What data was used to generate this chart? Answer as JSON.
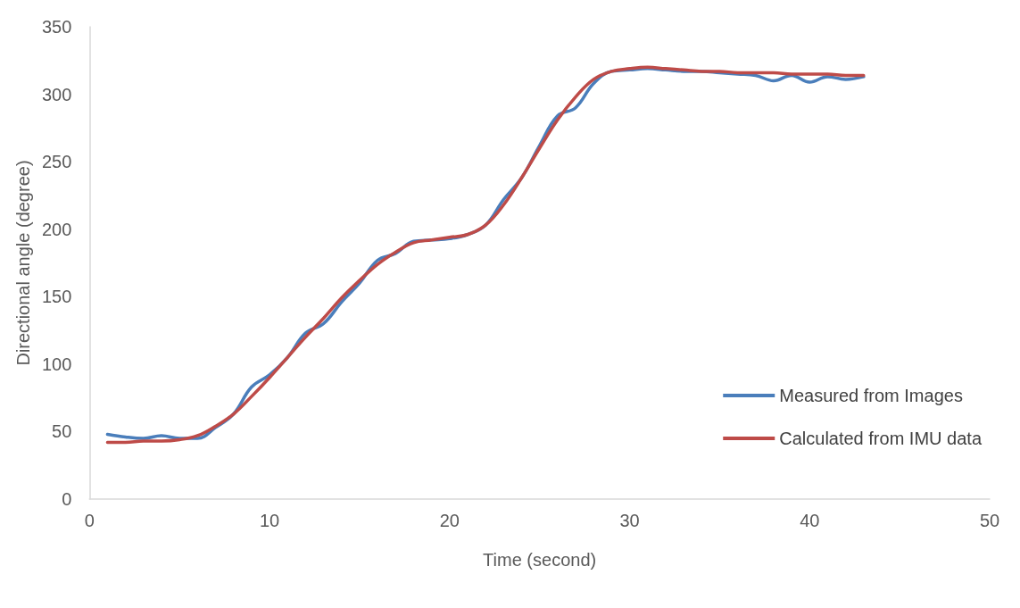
{
  "chart_data": {
    "type": "line",
    "xlabel": "Time (second)",
    "ylabel": "Directional angle (degree)",
    "x": [
      1,
      2,
      3,
      4,
      5,
      6,
      7,
      8,
      9,
      10,
      11,
      12,
      13,
      14,
      15,
      16,
      17,
      18,
      19,
      20,
      21,
      22,
      23,
      24,
      25,
      26,
      27,
      28,
      29,
      30,
      31,
      32,
      33,
      34,
      35,
      36,
      37,
      38,
      39,
      40,
      41,
      42,
      43
    ],
    "series": [
      {
        "name": "Measured from Images",
        "color": "#4a7ebb",
        "values": [
          48,
          46,
          45,
          47,
          45,
          45,
          53,
          63,
          83,
          92,
          105,
          123,
          130,
          146,
          160,
          177,
          182,
          191,
          192,
          193,
          196,
          203,
          222,
          238,
          262,
          284,
          290,
          308,
          317,
          318,
          319,
          318,
          317,
          317,
          316,
          315,
          314,
          310,
          314,
          309,
          313,
          311,
          313
        ]
      },
      {
        "name": "Calculated from IMU data",
        "color": "#be4b48",
        "values": [
          42,
          42,
          43,
          43,
          44,
          47,
          54,
          63,
          76,
          90,
          105,
          120,
          134,
          149,
          162,
          174,
          183,
          190,
          192,
          194,
          196,
          203,
          218,
          238,
          260,
          281,
          298,
          311,
          317,
          319,
          320,
          319,
          318,
          317,
          317,
          316,
          316,
          316,
          315,
          315,
          315,
          314,
          314
        ]
      }
    ],
    "xlim": [
      0,
      50
    ],
    "xticks": [
      0,
      10,
      20,
      30,
      40,
      50
    ],
    "ylim": [
      0,
      350
    ],
    "yticks": [
      0,
      50,
      100,
      150,
      200,
      250,
      300,
      350
    ],
    "grid": false,
    "legend": "right",
    "marker": "none",
    "line_style": "solid"
  }
}
